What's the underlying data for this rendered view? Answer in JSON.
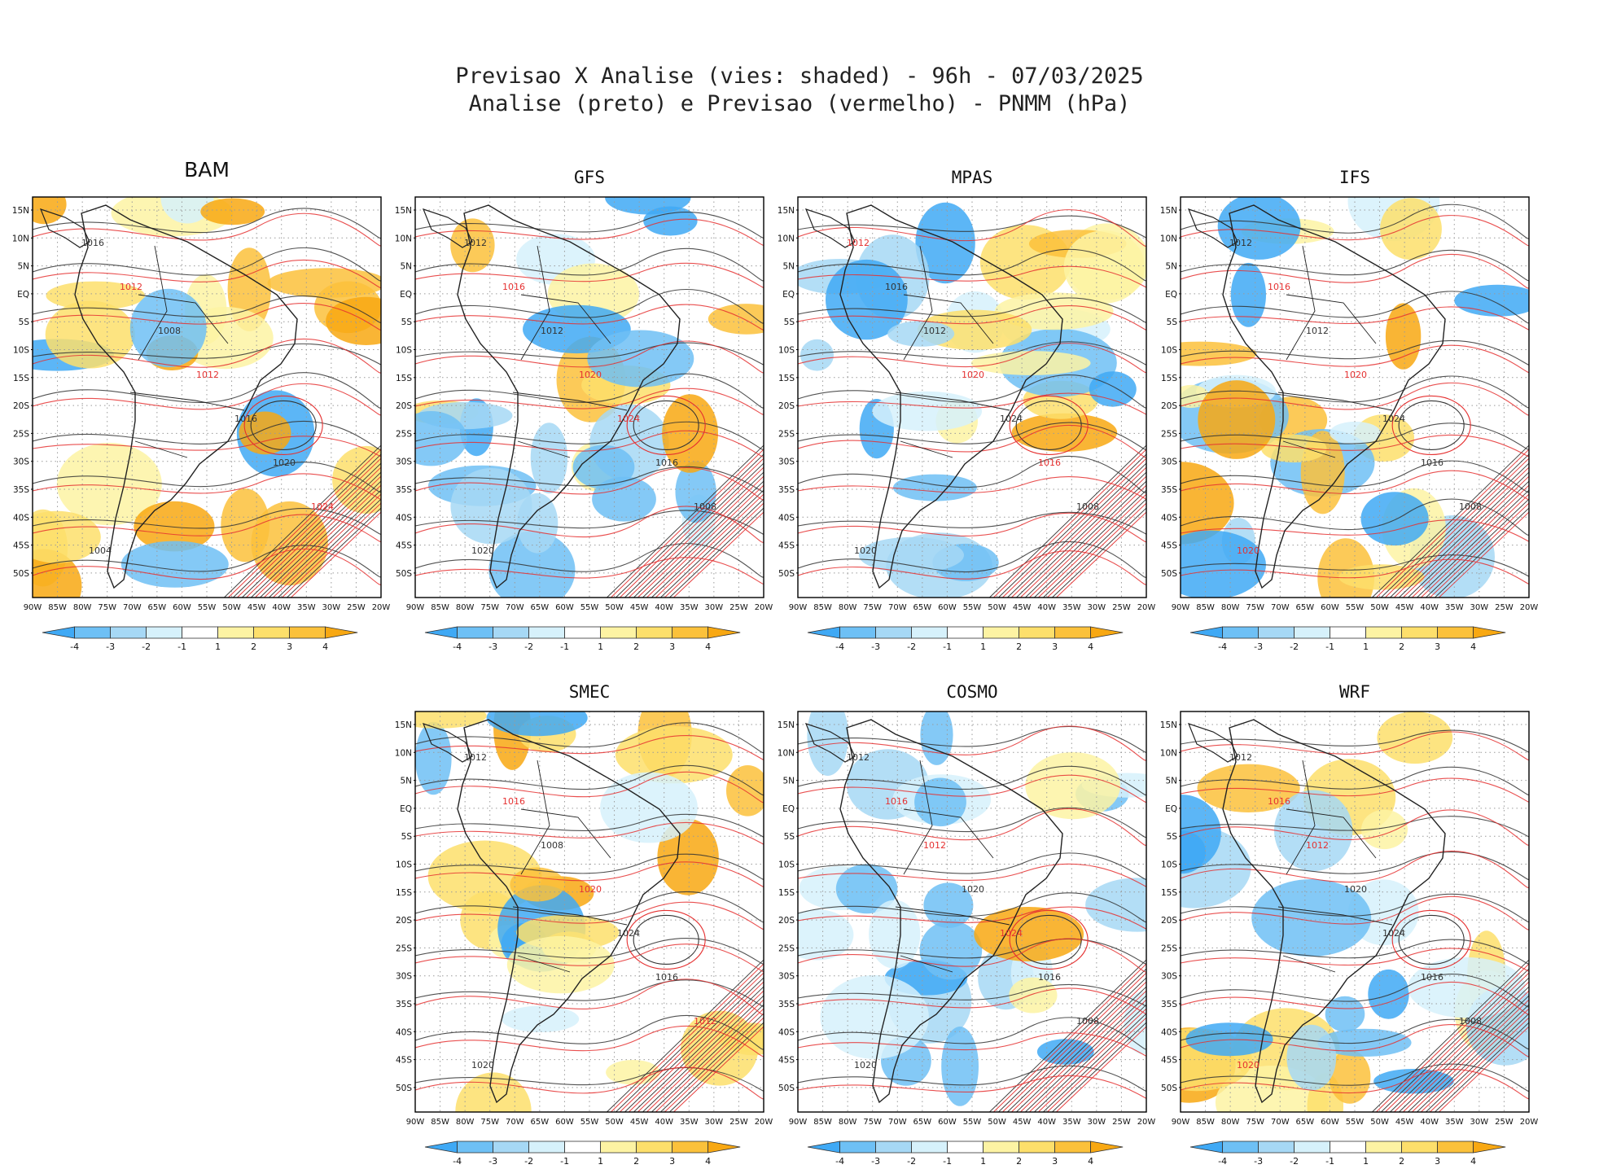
{
  "title": {
    "line1": "Previsao X Analise (vies: shaded) - 96h - 07/03/2025",
    "line2": "Analise (preto) e Previsao (vermelho) - PNMM (hPa)"
  },
  "axes": {
    "lat_labels": [
      "15N",
      "10N",
      "5N",
      "EQ",
      "5S",
      "10S",
      "15S",
      "20S",
      "25S",
      "30S",
      "35S",
      "40S",
      "45S",
      "50S"
    ],
    "lon_labels": [
      "90W",
      "85W",
      "80W",
      "75W",
      "70W",
      "65W",
      "60W",
      "55W",
      "50W",
      "45W",
      "40W",
      "35W",
      "30W",
      "25W",
      "20W"
    ]
  },
  "colorbar": {
    "labels": [
      "-4",
      "-3",
      "-2",
      "-1",
      "1",
      "2",
      "3",
      "4"
    ],
    "colors": [
      "#3fa9f5",
      "#6ec0f5",
      "#a6d8f5",
      "#d6f1fb",
      "#ffffff",
      "#fdf3a3",
      "#fddf6b",
      "#fbc13b",
      "#f8a812"
    ]
  },
  "colors": {
    "analysis_contour": "#333333",
    "forecast_contour": "#e53030",
    "coast": "#222222"
  },
  "panels": [
    {
      "name": "BAM",
      "bias": "warm",
      "labels": [
        [
          "1016",
          "black"
        ],
        [
          "1012",
          "red"
        ],
        [
          "1008",
          "black"
        ],
        [
          "1012",
          "red"
        ],
        [
          "1016",
          "black"
        ],
        [
          "1020",
          "black"
        ],
        [
          "1024",
          "red"
        ],
        [
          "1004",
          "black"
        ]
      ]
    },
    {
      "name": "GFS",
      "bias": "mixed",
      "labels": [
        [
          "1012",
          "black"
        ],
        [
          "1016",
          "red"
        ],
        [
          "1012",
          "black"
        ],
        [
          "1020",
          "red"
        ],
        [
          "1024",
          "red"
        ],
        [
          "1016",
          "black"
        ],
        [
          "1008",
          "black"
        ],
        [
          "1020",
          "black"
        ]
      ]
    },
    {
      "name": "MPAS",
      "bias": "cold",
      "labels": [
        [
          "1012",
          "red"
        ],
        [
          "1016",
          "black"
        ],
        [
          "1012",
          "black"
        ],
        [
          "1020",
          "red"
        ],
        [
          "1024",
          "black"
        ],
        [
          "1016",
          "red"
        ],
        [
          "1008",
          "black"
        ],
        [
          "1020",
          "black"
        ]
      ]
    },
    {
      "name": "IFS",
      "bias": "mixed",
      "labels": [
        [
          "1012",
          "black"
        ],
        [
          "1016",
          "red"
        ],
        [
          "1012",
          "black"
        ],
        [
          "1020",
          "red"
        ],
        [
          "1024",
          "black"
        ],
        [
          "1016",
          "black"
        ],
        [
          "1008",
          "black"
        ],
        [
          "1020",
          "red"
        ]
      ]
    },
    {
      "name": "SMEC",
      "bias": "mixed",
      "labels": [
        [
          "1012",
          "black"
        ],
        [
          "1016",
          "red"
        ],
        [
          "1008",
          "black"
        ],
        [
          "1020",
          "red"
        ],
        [
          "1024",
          "black"
        ],
        [
          "1016",
          "black"
        ],
        [
          "1012",
          "red"
        ],
        [
          "1020",
          "black"
        ]
      ]
    },
    {
      "name": "COSMO",
      "bias": "cold",
      "labels": [
        [
          "1012",
          "black"
        ],
        [
          "1016",
          "red"
        ],
        [
          "1012",
          "red"
        ],
        [
          "1020",
          "black"
        ],
        [
          "1024",
          "red"
        ],
        [
          "1016",
          "black"
        ],
        [
          "1008",
          "black"
        ],
        [
          "1020",
          "black"
        ]
      ]
    },
    {
      "name": "WRF",
      "bias": "mixed",
      "labels": [
        [
          "1012",
          "black"
        ],
        [
          "1016",
          "red"
        ],
        [
          "1012",
          "red"
        ],
        [
          "1020",
          "black"
        ],
        [
          "1024",
          "black"
        ],
        [
          "1016",
          "black"
        ],
        [
          "1008",
          "black"
        ],
        [
          "1020",
          "red"
        ]
      ]
    }
  ]
}
